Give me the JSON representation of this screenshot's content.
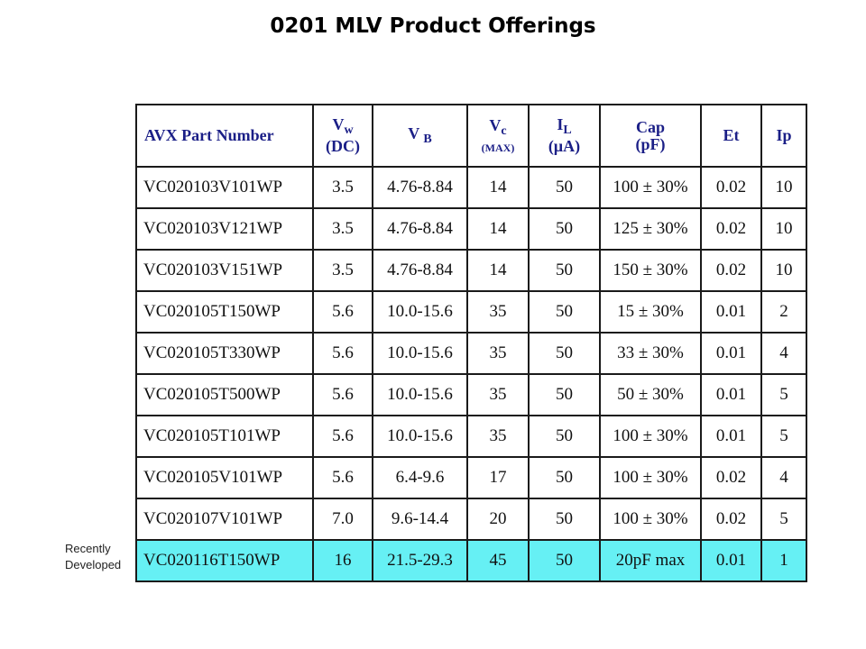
{
  "title": "0201 MLV Product Offerings",
  "side_note": {
    "line1": "Recently",
    "line2": "Developed"
  },
  "table": {
    "headers": {
      "part": "AVX Part Number",
      "vw_main": "V",
      "vw_sub": "w",
      "vw_unit": "(DC)",
      "vb_main": "V",
      "vb_sub": "B",
      "vc_main": "V",
      "vc_sub": "c",
      "vc_unit": "(MAX)",
      "il_main": "I",
      "il_sub": "L",
      "il_unit": "(µA)",
      "cap": "Cap",
      "cap_unit": "(pF)",
      "et": "Et",
      "ip": "Ip"
    },
    "rows": [
      {
        "part": "VC020103V101WP",
        "vw": "3.5",
        "vb": "4.76-8.84",
        "vc": "14",
        "il": "50",
        "cap": "100 ± 30%",
        "et": "0.02",
        "ip": "10"
      },
      {
        "part": "VC020103V121WP",
        "vw": "3.5",
        "vb": "4.76-8.84",
        "vc": "14",
        "il": "50",
        "cap": "125 ± 30%",
        "et": "0.02",
        "ip": "10"
      },
      {
        "part": "VC020103V151WP",
        "vw": "3.5",
        "vb": "4.76-8.84",
        "vc": "14",
        "il": "50",
        "cap": "150 ± 30%",
        "et": "0.02",
        "ip": "10"
      },
      {
        "part": "VC020105T150WP",
        "vw": "5.6",
        "vb": "10.0-15.6",
        "vc": "35",
        "il": "50",
        "cap": "15 ± 30%",
        "et": "0.01",
        "ip": "2"
      },
      {
        "part": "VC020105T330WP",
        "vw": "5.6",
        "vb": "10.0-15.6",
        "vc": "35",
        "il": "50",
        "cap": "33 ± 30%",
        "et": "0.01",
        "ip": "4"
      },
      {
        "part": "VC020105T500WP",
        "vw": "5.6",
        "vb": "10.0-15.6",
        "vc": "35",
        "il": "50",
        "cap": "50 ± 30%",
        "et": "0.01",
        "ip": "5"
      },
      {
        "part": "VC020105T101WP",
        "vw": "5.6",
        "vb": "10.0-15.6",
        "vc": "35",
        "il": "50",
        "cap": "100 ± 30%",
        "et": "0.01",
        "ip": "5"
      },
      {
        "part": "VC020105V101WP",
        "vw": "5.6",
        "vb": "6.4-9.6",
        "vc": "17",
        "il": "50",
        "cap": "100 ± 30%",
        "et": "0.02",
        "ip": "4"
      },
      {
        "part": "VC020107V101WP",
        "vw": "7.0",
        "vb": "9.6-14.4",
        "vc": "20",
        "il": "50",
        "cap": "100 ± 30%",
        "et": "0.02",
        "ip": "5"
      },
      {
        "part": "VC020116T150WP",
        "vw": "16",
        "vb": "21.5-29.3",
        "vc": "45",
        "il": "50",
        "cap": "20pF max",
        "et": "0.01",
        "ip": "1"
      }
    ]
  },
  "colors": {
    "header_text": "#1b1f87",
    "highlight_row": "#66f0f4"
  }
}
